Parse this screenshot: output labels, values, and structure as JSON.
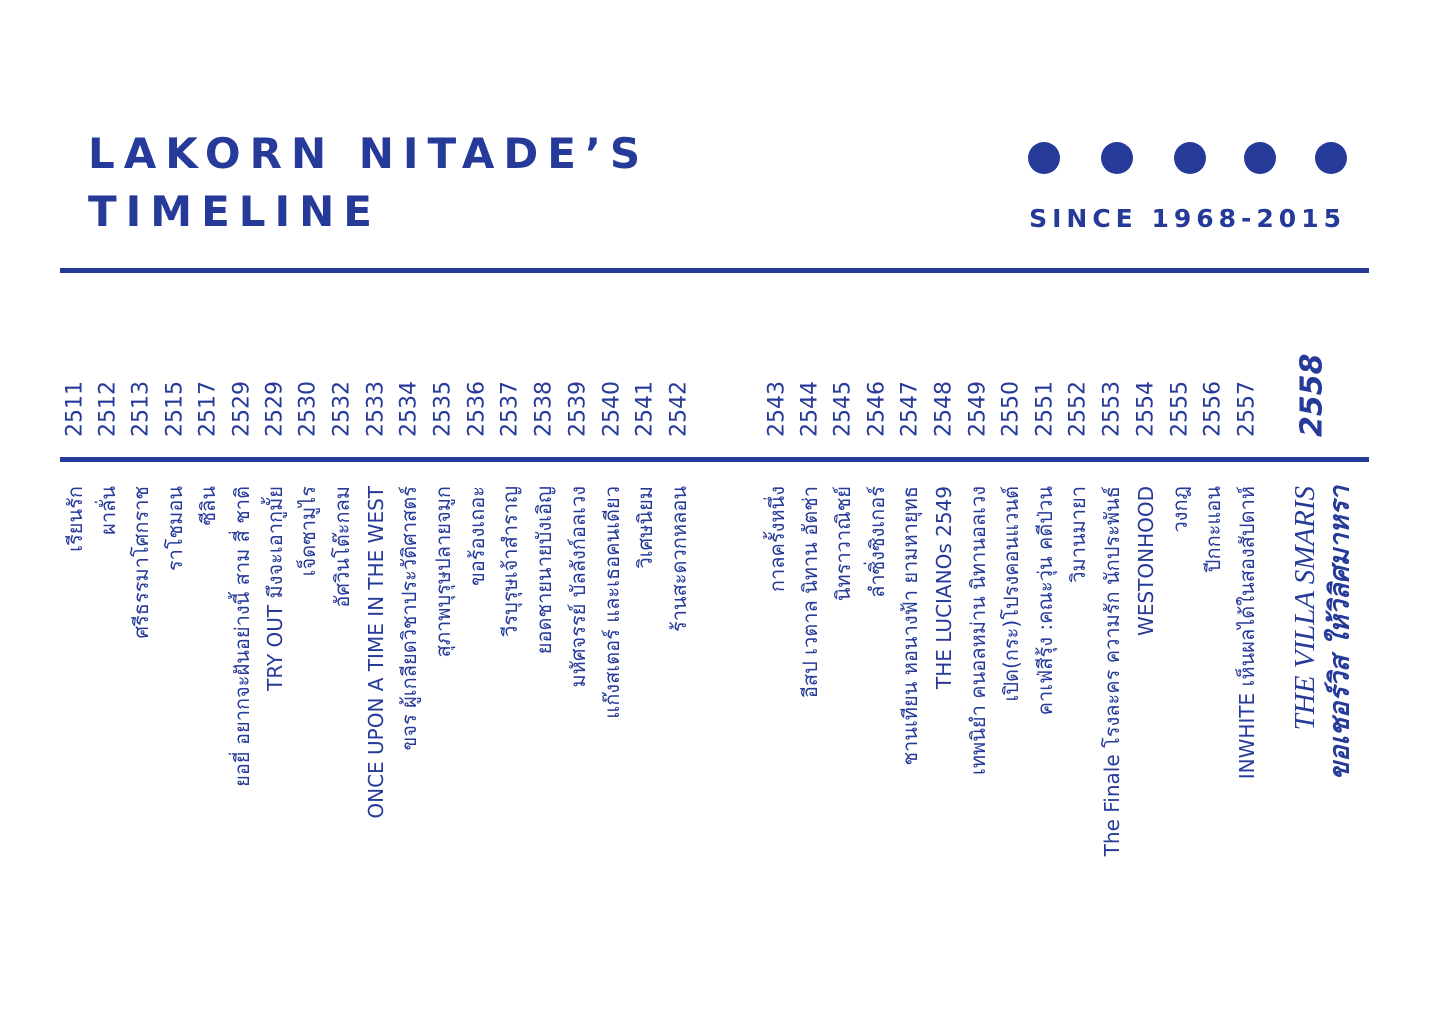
{
  "header": {
    "title_line1": "LAKORN NITADE’S",
    "title_line2": "TIMELINE",
    "since": "SINCE 1968-2015"
  },
  "timeline": [
    {
      "year": "2511",
      "title": "เรียนรัก"
    },
    {
      "year": "2512",
      "title": "ผาลั่น"
    },
    {
      "year": "2513",
      "title": "ศรีธรรมาโศกราช"
    },
    {
      "year": "2515",
      "title": "ราโชมอน"
    },
    {
      "year": "2517",
      "title": "ซีลิน"
    },
    {
      "year": "2529",
      "title": "ยอยี่ อยากจะฝันอย่างนี้ สาม สี่ ชาติ"
    },
    {
      "year": "2529",
      "title": "TRY OUT มึงจะเอากูมั้ย"
    },
    {
      "year": "2530",
      "title": "เจ็ดซามูไร"
    },
    {
      "year": "2532",
      "title": "อัศวินโต๊ะกลม"
    },
    {
      "year": "2533",
      "title": "ONCE UPON A TIME IN THE WEST"
    },
    {
      "year": "2534",
      "title": "ขจร ผู้เกลียดวิชาประวัติศาสตร์"
    },
    {
      "year": "2535",
      "title": "สุภาพบุรุษปลายจมูก"
    },
    {
      "year": "2536",
      "title": "ขอร้องเถอะ"
    },
    {
      "year": "2537",
      "title": "วีรบุรุษเจ้าสำราญ"
    },
    {
      "year": "2538",
      "title": "ยอดชายนายบังเอิญ"
    },
    {
      "year": "2539",
      "title": "มหัศจรรย์ บัลลังก์อลเวง"
    },
    {
      "year": "2540",
      "title": "แก๊งสเตอร์ และเธอคนเดียว"
    },
    {
      "year": "2541",
      "title": "วิเศษนิยม"
    },
    {
      "year": "2542",
      "title": "ร้านสะดวกหลอน"
    },
    {
      "year": "2543",
      "title": "กาลครั้งหนึ่ง"
    },
    {
      "year": "2544",
      "title": "อีสป เวตาล นิทาน อัตช่า"
    },
    {
      "year": "2545",
      "title": "นิทราวาณิชย์"
    },
    {
      "year": "2546",
      "title": "ลำซิ่งซิงเกอร์"
    },
    {
      "year": "2547",
      "title": "ชานเทียน หอนางฟ้า ยามหายุทธ"
    },
    {
      "year": "2548",
      "title": "THE LUCIANOs 2549"
    },
    {
      "year": "2549",
      "title": "เทพนิยำ คนอลหม่าน นิทานอลเวง"
    },
    {
      "year": "2550",
      "title": "เปิด(กระ)โปรงคอนแวนต์"
    },
    {
      "year": "2551",
      "title": "คาเฟ่สีรุ้ง :คณะวุ่น คดีป่วน"
    },
    {
      "year": "2552",
      "title": "วิมานมายา"
    },
    {
      "year": "2553",
      "title": "The Finale โรงละคร ความรัก นักประพันธ์"
    },
    {
      "year": "2554",
      "title": "WESTONHOOD"
    },
    {
      "year": "2555",
      "title": "วงกฎ"
    },
    {
      "year": "2556",
      "title": "ปีกกะแอน"
    },
    {
      "year": "2557",
      "title": "INWHITE เห็นผลได้ในสองสัปดาห์"
    }
  ],
  "finale": {
    "year": "2558",
    "title_line1": "THE VILLA SMARIS",
    "title_line2": "ขอเชอร์วิส ให้วิลิศมาหรา"
  }
}
